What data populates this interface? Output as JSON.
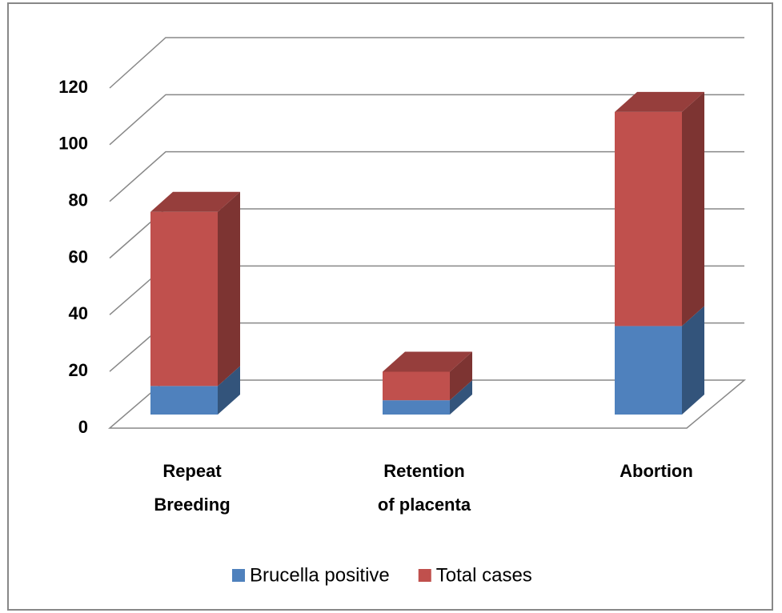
{
  "chart_data": {
    "type": "bar3d_stacked",
    "categories": [
      "Repeat Breeding",
      "Retention of placenta",
      "Abortion"
    ],
    "series": [
      {
        "name": "Brucella positive",
        "color": "#4f81bd",
        "values": [
          10,
          5,
          31
        ]
      },
      {
        "name": "Total cases",
        "color": "#c0504d",
        "values": [
          61,
          10,
          75
        ]
      }
    ],
    "ylim": [
      0,
      120
    ],
    "yticks": [
      0,
      20,
      40,
      60,
      80,
      100,
      120
    ],
    "grid": true,
    "legend": "bottom"
  }
}
